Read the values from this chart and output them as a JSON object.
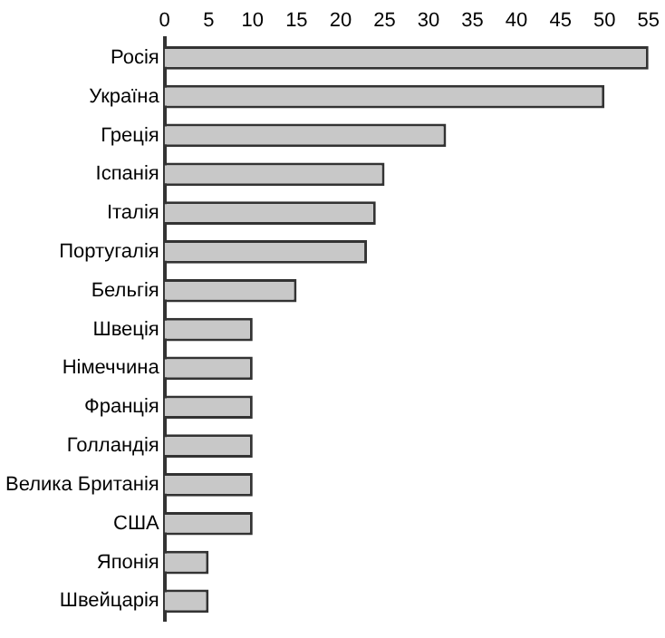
{
  "chart_data": {
    "type": "bar",
    "orientation": "horizontal",
    "categories": [
      "Росія",
      "Україна",
      "Греція",
      "Іспанія",
      "Італія",
      "Португалія",
      "Бельгія",
      "Швеція",
      "Німеччина",
      "Франція",
      "Голландія",
      "Велика Британія",
      "США",
      "Японія",
      "Швейцарія"
    ],
    "values": [
      55,
      50,
      32,
      25,
      24,
      23,
      15,
      10,
      10,
      10,
      10,
      10,
      10,
      5,
      5
    ],
    "color": "#c8c8c8",
    "xlim": [
      0,
      55
    ],
    "xticks": [
      0,
      5,
      10,
      15,
      20,
      25,
      30,
      35,
      40,
      45,
      50,
      55
    ],
    "grid": false
  }
}
